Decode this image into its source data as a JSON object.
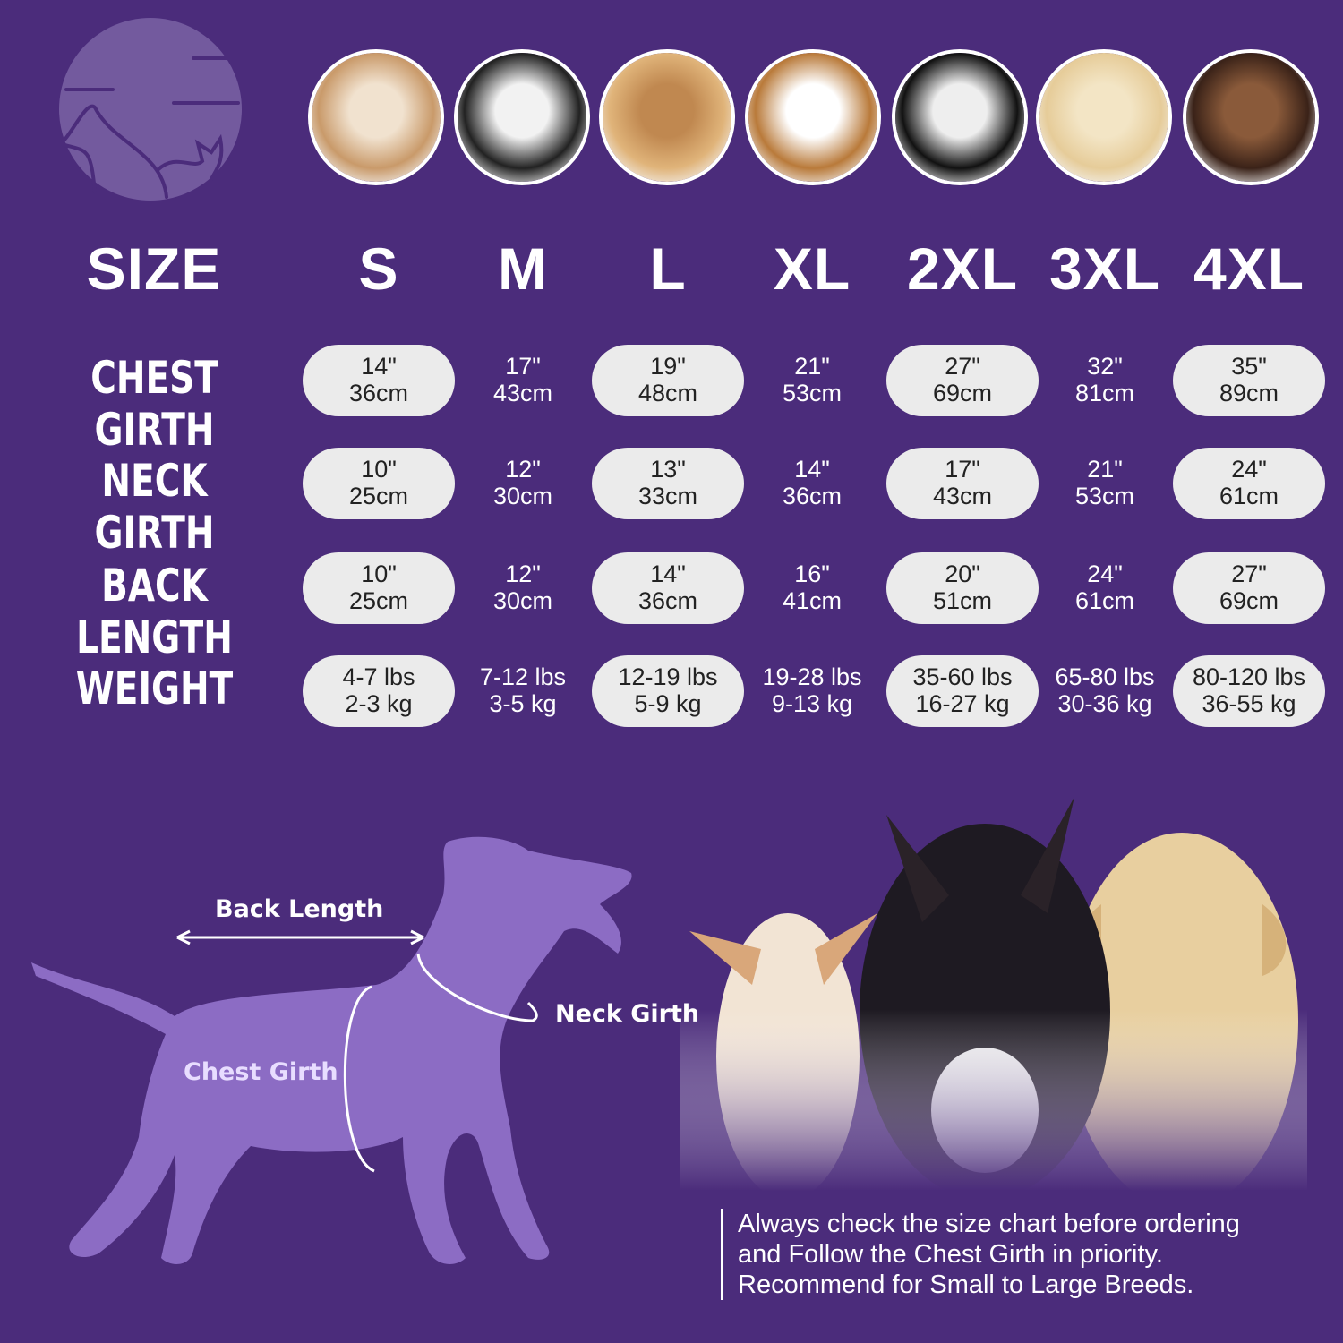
{
  "colors": {
    "background": "#4b2c7b",
    "pill": "#ebebeb",
    "silhouette": "#8c6cc4",
    "logo": "#735a9e"
  },
  "logo": {
    "icon": "dog-cat-logo"
  },
  "photos": [
    "shih-tzu",
    "boston-terrier",
    "cocker-spaniel",
    "beagle",
    "border-collie",
    "labrador",
    "doberman"
  ],
  "header": {
    "label": "SIZE",
    "sizes": [
      "S",
      "M",
      "L",
      "XL",
      "2XL",
      "3XL",
      "4XL"
    ]
  },
  "rows": [
    {
      "label": "CHEST GIRTH",
      "values": [
        [
          "14\"",
          "36cm"
        ],
        [
          "17\"",
          "43cm"
        ],
        [
          "19\"",
          "48cm"
        ],
        [
          "21\"",
          "53cm"
        ],
        [
          "27\"",
          "69cm"
        ],
        [
          "32\"",
          "81cm"
        ],
        [
          "35\"",
          "89cm"
        ]
      ]
    },
    {
      "label": "NECK GIRTH",
      "values": [
        [
          "10\"",
          "25cm"
        ],
        [
          "12\"",
          "30cm"
        ],
        [
          "13\"",
          "33cm"
        ],
        [
          "14\"",
          "36cm"
        ],
        [
          "17\"",
          "43cm"
        ],
        [
          "21\"",
          "53cm"
        ],
        [
          "24\"",
          "61cm"
        ]
      ]
    },
    {
      "label": "BACK LENGTH",
      "values": [
        [
          "10\"",
          "25cm"
        ],
        [
          "12\"",
          "30cm"
        ],
        [
          "14\"",
          "36cm"
        ],
        [
          "16\"",
          "41cm"
        ],
        [
          "20\"",
          "51cm"
        ],
        [
          "24\"",
          "61cm"
        ],
        [
          "27\"",
          "69cm"
        ]
      ]
    },
    {
      "label": "WEIGHT",
      "values": [
        [
          "4-7 lbs",
          "2-3 kg"
        ],
        [
          "7-12 lbs",
          "3-5 kg"
        ],
        [
          "12-19 lbs",
          "5-9 kg"
        ],
        [
          "19-28 lbs",
          "9-13 kg"
        ],
        [
          "35-60 lbs",
          "16-27 kg"
        ],
        [
          "65-80 lbs",
          "30-36 kg"
        ],
        [
          "80-120 lbs",
          "36-55 kg"
        ]
      ]
    }
  ],
  "diagram": {
    "back_length": "Back Length",
    "neck_girth": "Neck Girth",
    "chest_girth": "Chest Girth"
  },
  "note": [
    "Always check the size chart before ordering",
    "and Follow the Chest Girth in priority.",
    "Recommend for Small to Large Breeds."
  ]
}
